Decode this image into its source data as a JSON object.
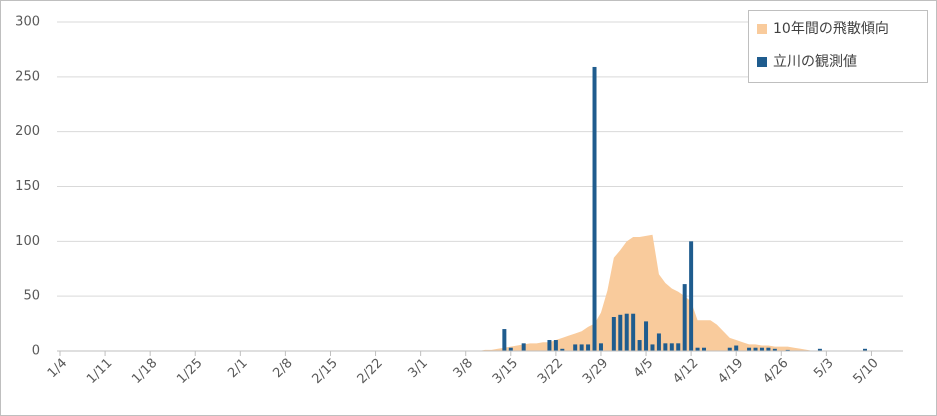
{
  "chart_data": {
    "type": "bar",
    "categories": [
      "1/4",
      null,
      null,
      null,
      null,
      null,
      null,
      "1/11",
      null,
      null,
      null,
      null,
      null,
      null,
      "1/18",
      null,
      null,
      null,
      null,
      null,
      null,
      "1/25",
      null,
      null,
      null,
      null,
      null,
      null,
      "2/1",
      null,
      null,
      null,
      null,
      null,
      null,
      "2/8",
      null,
      null,
      null,
      null,
      null,
      null,
      "2/15",
      null,
      null,
      null,
      null,
      null,
      null,
      "2/22",
      null,
      null,
      null,
      null,
      null,
      null,
      "3/1",
      null,
      null,
      null,
      null,
      null,
      null,
      "3/8",
      null,
      null,
      null,
      null,
      null,
      null,
      "3/15",
      null,
      null,
      null,
      null,
      null,
      null,
      "3/22",
      null,
      null,
      null,
      null,
      null,
      null,
      "3/29",
      null,
      null,
      null,
      null,
      null,
      null,
      "4/5",
      null,
      null,
      null,
      null,
      null,
      null,
      "4/12",
      null,
      null,
      null,
      null,
      null,
      null,
      "4/19",
      null,
      null,
      null,
      null,
      null,
      null,
      "4/26",
      null,
      null,
      null,
      null,
      null,
      null,
      "5/3",
      null,
      null,
      null,
      null,
      null,
      null,
      "5/10",
      null,
      null,
      null,
      null
    ],
    "series": [
      {
        "name": "10年間の飛散傾向",
        "type": "area",
        "color": "#f9cb9c",
        "values": [
          0,
          0,
          0,
          0,
          0,
          0,
          0,
          0,
          0,
          0,
          0,
          0,
          0,
          0,
          0,
          0,
          0,
          0,
          0,
          0,
          0,
          0,
          0,
          0,
          0,
          0,
          0,
          0,
          0,
          0,
          0,
          0,
          0,
          0,
          0,
          0,
          0,
          0,
          0,
          0,
          0,
          0,
          0,
          0,
          0,
          0,
          0,
          0,
          0,
          0,
          0,
          0,
          0,
          0,
          0,
          0,
          0,
          0,
          0,
          0,
          0,
          0,
          0,
          0,
          0,
          0,
          1,
          1,
          2,
          3,
          4,
          5,
          6,
          7,
          7,
          8,
          8,
          10,
          12,
          14,
          16,
          18,
          22,
          25,
          35,
          55,
          85,
          92,
          100,
          104,
          104,
          105,
          106,
          70,
          62,
          57,
          54,
          50,
          45,
          28,
          28,
          28,
          24,
          18,
          12,
          10,
          8,
          6,
          6,
          5,
          5,
          4,
          4,
          4,
          3,
          2,
          1,
          0,
          0,
          0,
          0,
          0,
          0,
          0,
          0,
          0,
          0,
          0,
          0,
          0,
          0
        ]
      },
      {
        "name": "立川の観測値",
        "type": "bar",
        "color": "#1f5c8e",
        "values": [
          0,
          0,
          0,
          0,
          0,
          0,
          0,
          0,
          0,
          0,
          0,
          0,
          0,
          0,
          0,
          0,
          0,
          0,
          0,
          0,
          0,
          0,
          0,
          0,
          0,
          0,
          0,
          0,
          0,
          0,
          0,
          0,
          0,
          0,
          0,
          0,
          0,
          0,
          0,
          0,
          0,
          0,
          0,
          0,
          0,
          0,
          0,
          0,
          0,
          0,
          0,
          0,
          0,
          0,
          0,
          0,
          0,
          0,
          0,
          0,
          0,
          0,
          0,
          0,
          0,
          0,
          0,
          0,
          0,
          20,
          3,
          0,
          7,
          0,
          0,
          0,
          10,
          10,
          2,
          0,
          6,
          6,
          6,
          259,
          7,
          0,
          31,
          33,
          34,
          34,
          10,
          27,
          6,
          16,
          7,
          7,
          7,
          61,
          100,
          3,
          3,
          0,
          0,
          0,
          3,
          5,
          0,
          3,
          3,
          3,
          3,
          2,
          0,
          1,
          0,
          0,
          0,
          0,
          2,
          0,
          0,
          0,
          0,
          0,
          0,
          2,
          0,
          0,
          0,
          0,
          0
        ]
      }
    ],
    "ylim": [
      0,
      300
    ],
    "yticks": [
      0,
      50,
      100,
      150,
      200,
      250,
      300
    ],
    "grid": true,
    "legend": "top-right"
  }
}
